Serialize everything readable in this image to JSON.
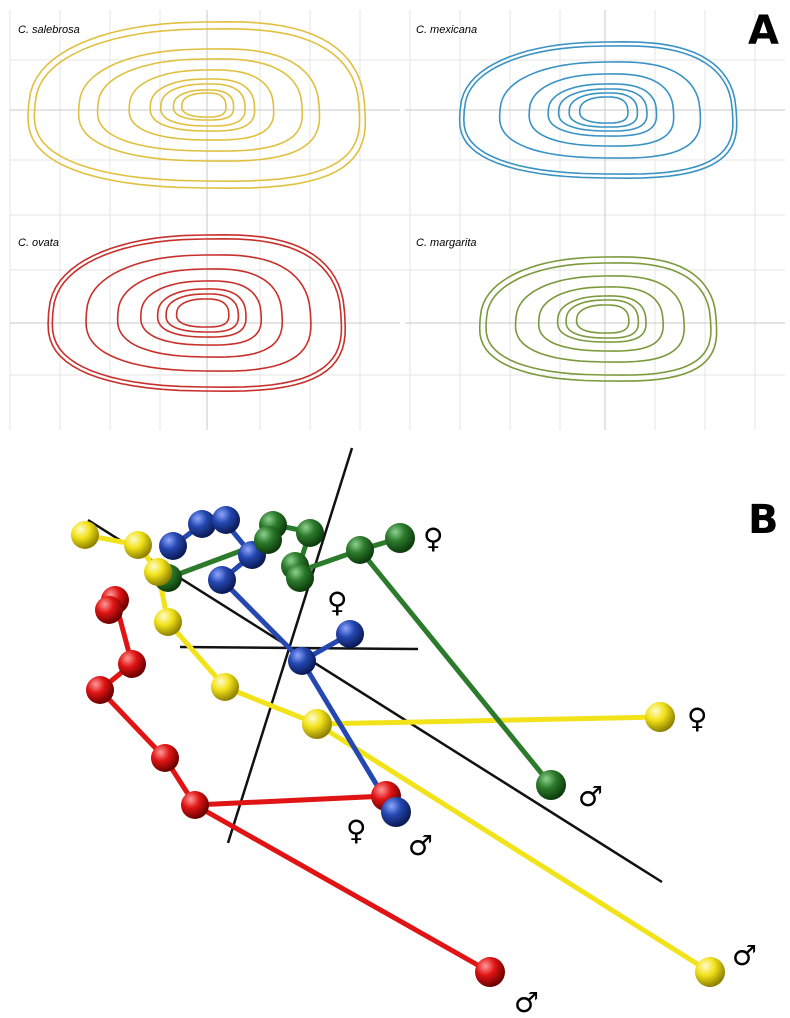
{
  "panel_a": {
    "letter": "A",
    "species": [
      {
        "name": "C. salebrosa",
        "color": "#e0c040"
      },
      {
        "name": "C. mexicana",
        "color": "#3a93c4"
      },
      {
        "name": "C. ovata",
        "color": "#c8302c"
      },
      {
        "name": "C. margarita",
        "color": "#7a9a3c"
      }
    ]
  },
  "panel_b": {
    "letter": "B",
    "female_symbol": "♀",
    "male_symbol": "♂",
    "colors": {
      "yellow": "#f2e21a",
      "blue": "#2447b0",
      "green": "#2c7a2c",
      "red": "#e01414",
      "axis": "#111111"
    }
  }
}
